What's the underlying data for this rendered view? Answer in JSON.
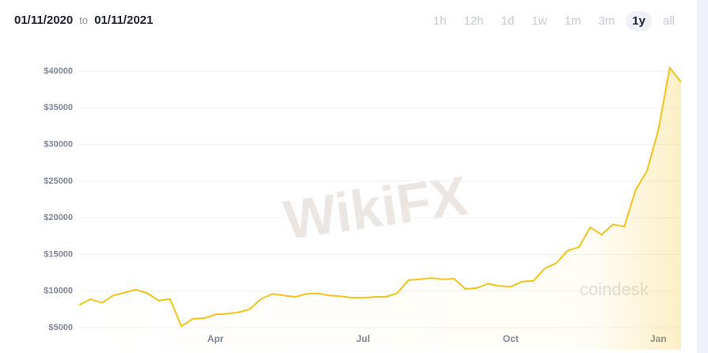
{
  "header": {
    "from": "01/11/2020",
    "to_word": "to",
    "to": "01/11/2021",
    "ranges": [
      "1h",
      "12h",
      "1d",
      "1w",
      "1m",
      "3m",
      "1y",
      "all"
    ],
    "selected": "1y"
  },
  "chart_data": {
    "type": "line",
    "categories": [
      null,
      null,
      null,
      null,
      null,
      null,
      null,
      null,
      null,
      null,
      null,
      null,
      "Apr",
      null,
      null,
      null,
      null,
      null,
      null,
      null,
      null,
      null,
      null,
      null,
      null,
      "Jul",
      null,
      null,
      null,
      null,
      null,
      null,
      null,
      null,
      null,
      null,
      null,
      null,
      "Oct",
      null,
      null,
      null,
      null,
      null,
      null,
      null,
      null,
      null,
      null,
      null,
      null,
      "Jan",
      null,
      null
    ],
    "values": [
      8100,
      8900,
      8400,
      9400,
      9800,
      10200,
      9700,
      8700,
      8900,
      5200,
      6200,
      6300,
      6800,
      6900,
      7100,
      7500,
      8900,
      9600,
      9400,
      9200,
      9600,
      9700,
      9400,
      9300,
      9100,
      9100,
      9200,
      9200,
      9700,
      11500,
      11600,
      11800,
      11600,
      11700,
      10300,
      10400,
      11000,
      10700,
      10600,
      11300,
      11400,
      13100,
      13800,
      15500,
      16000,
      18700,
      17700,
      19100,
      18800,
      23800,
      26400,
      32000,
      40500,
      38500
    ],
    "color": "#f4c21b",
    "ylim": [
      2000,
      42000
    ],
    "yticks": [
      {
        "value": 5000,
        "label": "$5000"
      },
      {
        "value": 10000,
        "label": "$10000"
      },
      {
        "value": 15000,
        "label": "$15000"
      },
      {
        "value": 20000,
        "label": "$20000"
      },
      {
        "value": 25000,
        "label": "$25000"
      },
      {
        "value": 30000,
        "label": "$30000"
      },
      {
        "value": 35000,
        "label": "$35000"
      },
      {
        "value": 40000,
        "label": "$40000"
      }
    ],
    "grid": true,
    "watermarks": [
      "WikiFX",
      "coindesk"
    ]
  }
}
